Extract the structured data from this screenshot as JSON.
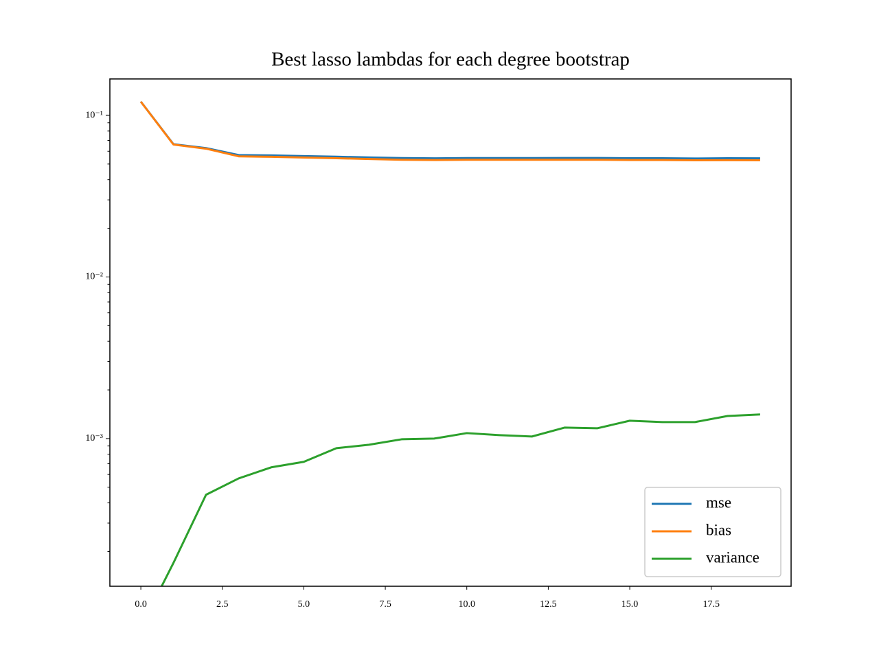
{
  "chart_data": {
    "type": "line",
    "title": "Best lasso lambdas for each degree bootstrap",
    "x": [
      0,
      1,
      2,
      3,
      4,
      5,
      6,
      7,
      8,
      9,
      10,
      11,
      12,
      13,
      14,
      15,
      16,
      17,
      18,
      19
    ],
    "series": [
      {
        "name": "mse",
        "color": "#1f77b4",
        "values": [
          0.1216,
          0.0663,
          0.0627,
          0.0568,
          0.0565,
          0.056,
          0.0555,
          0.0549,
          0.0544,
          0.0542,
          0.0544,
          0.0544,
          0.0544,
          0.0545,
          0.0545,
          0.0543,
          0.0543,
          0.0541,
          0.0543,
          0.0542
        ]
      },
      {
        "name": "bias",
        "color": "#ff7f0e",
        "values": [
          0.1215,
          0.066,
          0.0622,
          0.0558,
          0.0554,
          0.0548,
          0.0543,
          0.0537,
          0.0531,
          0.0529,
          0.0531,
          0.0531,
          0.0531,
          0.0531,
          0.0531,
          0.0529,
          0.0529,
          0.0527,
          0.0528,
          0.0527
        ]
      },
      {
        "name": "variance",
        "color": "#2ca02c",
        "values": [
          0,
          0.00017,
          0.000449,
          0.000567,
          0.000664,
          0.000718,
          0.000872,
          0.000916,
          0.00099,
          0.001,
          0.001081,
          0.00105,
          0.00103,
          0.001169,
          0.001158,
          0.00129,
          0.001265,
          0.001265,
          0.00138,
          0.00141
        ]
      }
    ],
    "xlim": [
      -0.95,
      19.95
    ],
    "xticks": [
      {
        "value": 0,
        "label": "0.0"
      },
      2.5,
      {
        "value": 5,
        "label": "5.0"
      },
      7.5,
      {
        "value": 10,
        "label": "10.0"
      },
      12.5,
      {
        "value": 15,
        "label": "15.0"
      },
      17.5
    ],
    "ylim": [
      0.000122,
      0.168
    ],
    "yscale": "log",
    "yticks": [
      {
        "value": 0.1,
        "label": "10⁻¹"
      },
      {
        "value": 0.01,
        "label": "10⁻²"
      },
      {
        "value": 0.001,
        "label": "10⁻³"
      }
    ],
    "yminorticks": [
      0.0002,
      0.0003,
      0.0004,
      0.0005,
      0.0006,
      0.0007,
      0.0008,
      0.0009,
      0.002,
      0.003,
      0.004,
      0.005,
      0.006,
      0.007,
      0.008,
      0.009,
      0.02,
      0.03,
      0.04,
      0.05,
      0.06,
      0.07,
      0.08,
      0.09
    ],
    "legend": "lower right"
  }
}
